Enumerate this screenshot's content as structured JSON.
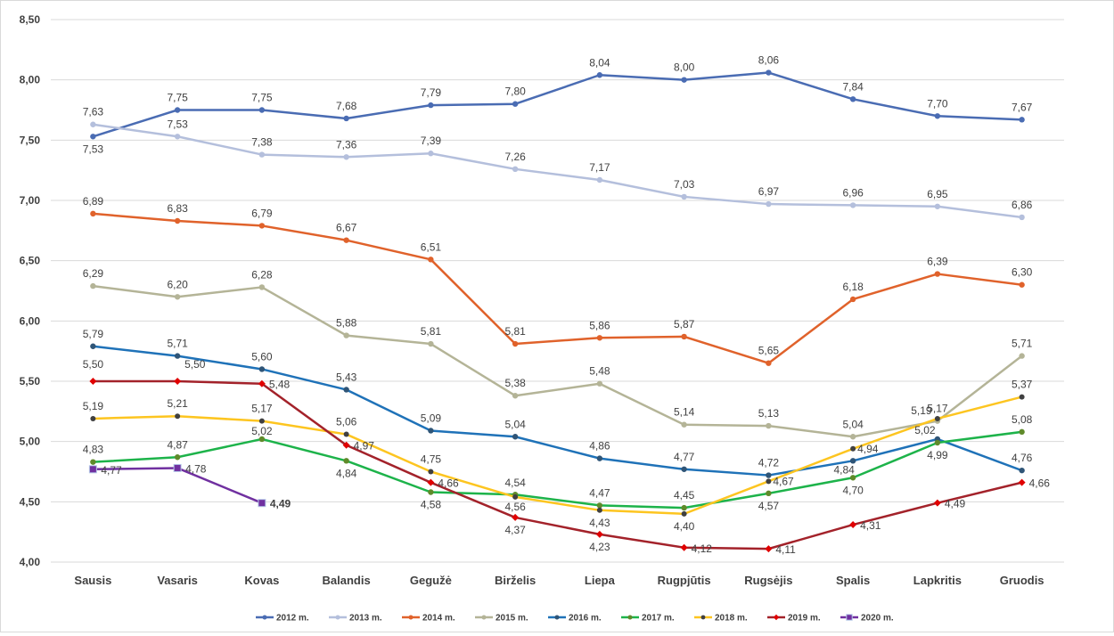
{
  "chart_data": {
    "type": "line",
    "title": "",
    "xlabel": "",
    "ylabel": "",
    "ylim": [
      4.0,
      8.5
    ],
    "yticks": [
      4.0,
      4.5,
      5.0,
      5.5,
      6.0,
      6.5,
      7.0,
      7.5,
      8.0,
      8.5
    ],
    "ytick_labels": [
      "4,00",
      "4,50",
      "5,00",
      "5,50",
      "6,00",
      "6,50",
      "7,00",
      "7,50",
      "8,00",
      "8,50"
    ],
    "grid": true,
    "legend_position": "bottom",
    "categories": [
      "Sausis",
      "Vasaris",
      "Kovas",
      "Balandis",
      "Gegužė",
      "Birželis",
      "Liepa",
      "Rugpjūtis",
      "Rugsėjis",
      "Spalis",
      "Lapkritis",
      "Gruodis"
    ],
    "series": [
      {
        "name": "2012 m.",
        "color": "#4a6cb3",
        "marker": "circle",
        "values": [
          7.53,
          7.75,
          7.75,
          7.68,
          7.79,
          7.8,
          8.04,
          8.0,
          8.06,
          7.84,
          7.7,
          7.67
        ],
        "labels": [
          "7,53",
          "7,75",
          "7,75",
          "7,68",
          "7,79",
          "7,80",
          "8,04",
          "8,00",
          "8,06",
          "7,84",
          "7,70",
          "7,67"
        ]
      },
      {
        "name": "2013 m.",
        "color": "#b4bfdc",
        "marker": "circle",
        "values": [
          7.63,
          7.53,
          7.38,
          7.36,
          7.39,
          7.26,
          7.17,
          7.03,
          6.97,
          6.96,
          6.95,
          6.86
        ],
        "labels": [
          "7,63",
          "7,53",
          "7,38",
          "7,36",
          "7,39",
          "7,26",
          "7,17",
          "7,03",
          "6,97",
          "6,96",
          "6,95",
          "6,86"
        ]
      },
      {
        "name": "2014 m.",
        "color": "#e0622b",
        "marker": "circle",
        "values": [
          6.89,
          6.83,
          6.79,
          6.67,
          6.51,
          5.81,
          5.86,
          5.87,
          5.65,
          6.18,
          6.39,
          6.3
        ],
        "labels": [
          "6,89",
          "6,83",
          "6,79",
          "6,67",
          "6,51",
          "5,81",
          "5,86",
          "5,87",
          "5,65",
          "6,18",
          "6,39",
          "6,30"
        ]
      },
      {
        "name": "2015 m.",
        "color": "#b4b497",
        "marker": "circle",
        "values": [
          6.29,
          6.2,
          6.28,
          5.88,
          5.81,
          5.38,
          5.48,
          5.14,
          5.13,
          5.04,
          5.17,
          5.71
        ],
        "labels": [
          "6,29",
          "6,20",
          "6,28",
          "5,88",
          "5,81",
          "5,38",
          "5,48",
          "5,14",
          "5,13",
          "5,04",
          "5,17",
          "5,71"
        ]
      },
      {
        "name": "2016 m.",
        "color": "#1f72b8",
        "marker": "circle",
        "values": [
          5.79,
          5.71,
          5.6,
          5.43,
          5.09,
          5.04,
          4.86,
          4.77,
          4.72,
          4.84,
          5.02,
          4.76
        ],
        "labels": [
          "5,79",
          "5,71",
          "5,60",
          "5,43",
          "5,09",
          "5,04",
          "4,86",
          "4,77",
          "4,72",
          "4,84",
          "5,02",
          "4,76"
        ]
      },
      {
        "name": "2017 m.",
        "color": "#1db34a",
        "marker": "circle",
        "values": [
          4.83,
          4.87,
          5.02,
          4.84,
          4.58,
          4.56,
          4.47,
          4.45,
          4.57,
          4.7,
          4.99,
          5.08
        ],
        "labels": [
          "4,83",
          "4,87",
          "5,02",
          "4,84",
          "4,58",
          "4,56",
          "4,47",
          "4,45",
          "4,57",
          "4,70",
          "4,99",
          "5,08"
        ]
      },
      {
        "name": "2018 m.",
        "color": "#fdc520",
        "marker": "dot-dark",
        "values": [
          5.19,
          5.21,
          5.17,
          5.06,
          4.75,
          4.54,
          4.43,
          4.4,
          4.67,
          4.94,
          5.19,
          5.37
        ],
        "labels": [
          "5,19",
          "5,21",
          "5,17",
          "5,06",
          "4,75",
          "4,54",
          "4,43",
          "4,40",
          "4,67",
          "4,94",
          "5,19",
          "5,37"
        ]
      },
      {
        "name": "2019 m.",
        "color": "#a3222a",
        "marker": "diamond",
        "values": [
          5.5,
          5.5,
          5.48,
          4.97,
          4.66,
          4.37,
          4.23,
          4.12,
          4.11,
          4.31,
          4.49,
          4.66
        ],
        "labels": [
          "5,50",
          "5,50",
          "5,48",
          "4,97",
          "4,66",
          "4,37",
          "4,23",
          "4,12",
          "4,11",
          "4,31",
          "4,49",
          "4,66"
        ]
      },
      {
        "name": "2020 m.",
        "color": "#7030a0",
        "marker": "square",
        "values": [
          4.77,
          4.78,
          4.49
        ],
        "labels": [
          "4,77",
          "4,78",
          "4,49"
        ]
      }
    ]
  }
}
